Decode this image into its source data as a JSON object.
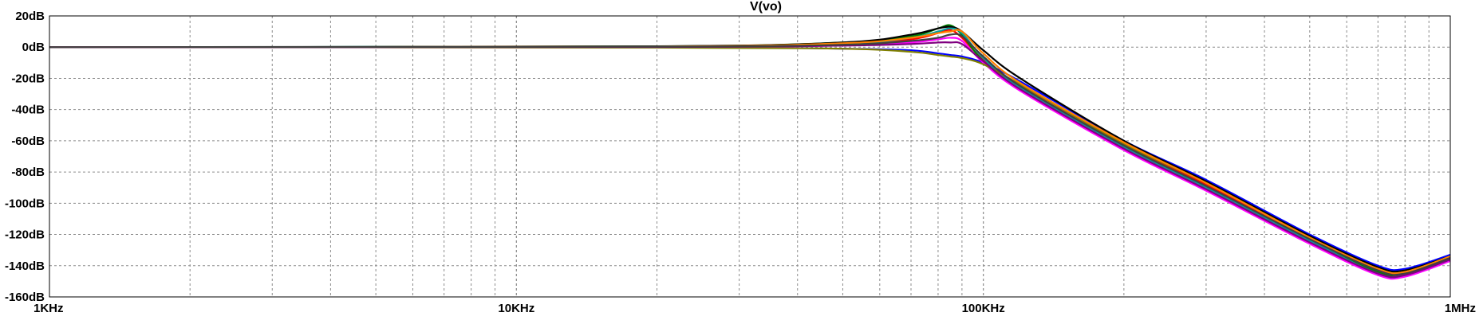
{
  "chart_data": {
    "type": "line",
    "title": "V(vo)",
    "x_scale": "log",
    "x_range_hz": [
      1000,
      1000000
    ],
    "y_unit": "dB",
    "ylim": [
      -160,
      20
    ],
    "y_ticks": [
      20,
      0,
      -20,
      -40,
      -60,
      -80,
      -100,
      -120,
      -140,
      -160
    ],
    "y_tick_labels": [
      "20dB",
      "0dB",
      "-20dB",
      "-40dB",
      "-60dB",
      "-80dB",
      "-100dB",
      "-120dB",
      "-140dB",
      "-160dB"
    ],
    "x_tick_values": [
      1000,
      10000,
      100000,
      1000000
    ],
    "x_tick_labels": [
      "1KHz",
      "10KHz",
      "100KHz",
      "1MHz"
    ],
    "grid": true,
    "grid_style": "dashed",
    "legend": "none",
    "background": "#ffffff",
    "series_colors": [
      "#000000",
      "#0000ff",
      "#ff0000",
      "#008000",
      "#ff00ff",
      "#00a0a0",
      "#808000",
      "#ff8000",
      "#800080",
      "#a0a000",
      "#404040",
      "#00c000"
    ],
    "series": [
      {
        "color": "#ff0000",
        "x": [
          1000,
          20000,
          50000,
          70000,
          80000,
          85000,
          90000,
          100000,
          120000,
          200000,
          300000,
          500000,
          700000,
          800000,
          1000000
        ],
        "y": [
          0,
          0.3,
          2,
          5,
          9,
          11,
          6,
          -8,
          -25,
          -63,
          -88,
          -122,
          -142,
          -144,
          -135
        ]
      },
      {
        "color": "#008000",
        "x": [
          1000,
          20000,
          50000,
          70000,
          80000,
          85000,
          90000,
          100000,
          120000,
          200000,
          300000,
          500000,
          700000,
          800000,
          1000000
        ],
        "y": [
          0,
          0.5,
          3,
          7,
          12,
          14,
          8,
          -9,
          -27,
          -65,
          -90,
          -124,
          -144,
          -146,
          -136
        ]
      },
      {
        "color": "#0000ff",
        "x": [
          1000,
          20000,
          50000,
          70000,
          80000,
          85000,
          90000,
          100000,
          120000,
          200000,
          300000,
          500000,
          700000,
          800000,
          1000000
        ],
        "y": [
          0,
          0,
          -1,
          -2,
          -4,
          -5,
          -6,
          -10,
          -22,
          -60,
          -85,
          -120,
          -140,
          -142,
          -133
        ]
      },
      {
        "color": "#000000",
        "x": [
          1000,
          20000,
          50000,
          70000,
          80000,
          85000,
          90000,
          100000,
          120000,
          200000,
          300000,
          500000,
          700000,
          800000,
          1000000
        ],
        "y": [
          0,
          0.6,
          3,
          8,
          12,
          13,
          10,
          -2,
          -20,
          -60,
          -86,
          -121,
          -141,
          -143,
          -134
        ]
      },
      {
        "color": "#ff00ff",
        "x": [
          1000,
          20000,
          50000,
          70000,
          80000,
          85000,
          90000,
          100000,
          120000,
          200000,
          300000,
          500000,
          700000,
          800000,
          1000000
        ],
        "y": [
          0,
          0.2,
          1,
          3,
          5,
          6,
          4,
          -10,
          -28,
          -66,
          -92,
          -126,
          -146,
          -147,
          -137
        ]
      },
      {
        "color": "#00a0a0",
        "x": [
          1000,
          20000,
          50000,
          70000,
          80000,
          85000,
          90000,
          100000,
          120000,
          200000,
          300000,
          500000,
          700000,
          800000,
          1000000
        ],
        "y": [
          0,
          0.4,
          2,
          6,
          10,
          12,
          9,
          -7,
          -26,
          -64,
          -90,
          -124,
          -145,
          -146,
          -136
        ]
      },
      {
        "color": "#808000",
        "x": [
          1000,
          20000,
          50000,
          70000,
          80000,
          85000,
          90000,
          100000,
          120000,
          200000,
          300000,
          500000,
          700000,
          800000,
          1000000
        ],
        "y": [
          0,
          -0.3,
          -1,
          -3,
          -5,
          -6,
          -7,
          -11,
          -24,
          -62,
          -87,
          -122,
          -142,
          -144,
          -134
        ]
      },
      {
        "color": "#ff8000",
        "x": [
          1000,
          20000,
          50000,
          70000,
          80000,
          85000,
          90000,
          100000,
          120000,
          200000,
          300000,
          500000,
          700000,
          800000,
          1000000
        ],
        "y": [
          0,
          0.4,
          2.5,
          6,
          9,
          10,
          10,
          -4,
          -23,
          -61,
          -87,
          -122,
          -142,
          -144,
          -134
        ]
      },
      {
        "color": "#800080",
        "x": [
          1000,
          20000,
          50000,
          70000,
          80000,
          85000,
          90000,
          100000,
          120000,
          200000,
          300000,
          500000,
          700000,
          800000,
          1000000
        ],
        "y": [
          0,
          0.1,
          1,
          2,
          3,
          3,
          2,
          -9,
          -27,
          -65,
          -91,
          -125,
          -145,
          -146,
          -136
        ]
      },
      {
        "color": "#404040",
        "x": [
          1000,
          20000,
          50000,
          70000,
          80000,
          85000,
          90000,
          100000,
          120000,
          200000,
          300000,
          500000,
          700000,
          800000,
          1000000
        ],
        "y": [
          0,
          0.3,
          1.5,
          4,
          6,
          8,
          7,
          -6,
          -25,
          -63,
          -89,
          -123,
          -143,
          -145,
          -135
        ]
      }
    ]
  }
}
